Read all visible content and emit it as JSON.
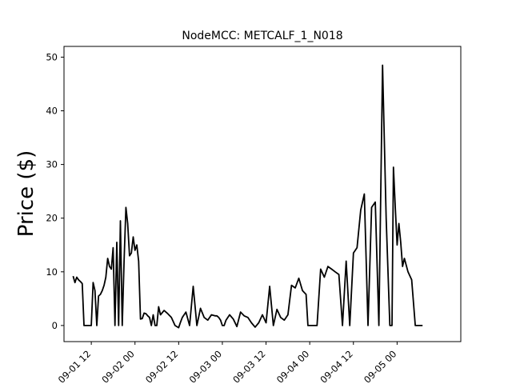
{
  "chart_data": {
    "type": "line",
    "title": "NodeMCC: METCALF_1_N018",
    "xlabel": "",
    "ylabel": "Price ($)",
    "xlim_hours": [
      -19.5,
      89.5
    ],
    "ylim": [
      -3,
      52
    ],
    "grid": false,
    "legend": "none",
    "line_color": "#000000",
    "y_ticks": [
      0,
      10,
      20,
      30,
      40,
      50
    ],
    "x_ticks": [
      {
        "hour": -12,
        "label": "09-01 12"
      },
      {
        "hour": 0,
        "label": "09-02 00"
      },
      {
        "hour": 12,
        "label": "09-02 12"
      },
      {
        "hour": 24,
        "label": "09-03 00"
      },
      {
        "hour": 36,
        "label": "09-03 12"
      },
      {
        "hour": 48,
        "label": "09-04 00"
      },
      {
        "hour": 60,
        "label": "09-04 12"
      },
      {
        "hour": 72,
        "label": "09-05 00"
      }
    ],
    "series": [
      {
        "x": [
          -17,
          -16.5,
          -16,
          -15.5,
          -15,
          -14.5,
          -14,
          -13.5,
          -13,
          -12.5,
          -12,
          -11.5,
          -11,
          -10.5,
          -10,
          -9.5,
          -9,
          -8.5,
          -8,
          -7.5,
          -7,
          -6.5,
          -6,
          -5.5,
          -5,
          -4.5,
          -4,
          -3.5,
          -3,
          -2.5,
          -2,
          -1.5,
          -1,
          -0.5,
          0,
          0.5,
          1,
          1.5,
          2,
          2.5,
          3,
          3.5,
          4,
          4.5,
          5,
          5.5,
          6,
          6.5,
          7,
          8,
          9,
          10,
          11,
          12,
          12.5,
          13,
          14,
          15,
          16,
          17,
          18,
          19,
          20,
          21,
          22,
          22.5,
          23,
          23.5,
          24,
          24.5,
          25,
          26,
          27,
          28,
          29,
          30,
          31,
          32,
          33,
          34,
          35,
          36,
          37,
          38,
          39,
          40,
          41,
          42,
          43,
          44,
          45,
          46,
          47,
          47.5,
          48,
          48.5,
          49,
          50,
          51,
          52,
          53,
          54,
          55,
          56,
          57,
          58,
          59,
          60,
          61,
          62,
          63,
          64,
          65,
          66,
          67,
          68,
          69,
          70,
          70.3,
          70.6,
          71,
          71.5,
          72,
          72.5,
          73,
          73.5,
          74,
          75,
          76,
          77,
          77.5,
          78,
          79
        ],
        "y": [
          9.2,
          8.0,
          9.0,
          8.5,
          8.2,
          7.8,
          0,
          0,
          0,
          0,
          0,
          8.0,
          6.5,
          0,
          5.5,
          5.8,
          6.5,
          7.5,
          9.0,
          12.5,
          11.0,
          10.5,
          14.5,
          0,
          15.5,
          0,
          19.5,
          0,
          12.0,
          22.0,
          19.0,
          13.0,
          13.5,
          16.5,
          14.0,
          15.0,
          12.0,
          1.2,
          1.3,
          2.3,
          2.2,
          1.8,
          1.5,
          0,
          2.0,
          0,
          0,
          3.5,
          2.0,
          2.8,
          2.2,
          1.5,
          0,
          -0.4,
          0.6,
          1.5,
          2.5,
          0,
          7.3,
          0,
          3.2,
          1.5,
          1.0,
          2.0,
          1.8,
          1.8,
          1.5,
          1.0,
          0,
          0,
          1.0,
          2.0,
          1.2,
          -0.2,
          2.5,
          1.8,
          1.5,
          0.5,
          -0.3,
          0.5,
          2.0,
          0.5,
          7.3,
          0,
          3.0,
          1.5,
          1.0,
          2.0,
          7.5,
          7.0,
          8.8,
          6.5,
          5.8,
          0,
          0,
          0,
          0,
          0,
          10.5,
          9.0,
          11.0,
          10.5,
          10.0,
          9.5,
          0,
          12.0,
          0,
          13.5,
          14.5,
          21.5,
          24.5,
          0,
          22.0,
          23.0,
          0,
          48.5,
          20.0,
          0,
          0,
          0,
          29.5,
          22.0,
          15.0,
          19.0,
          15.5,
          11.0,
          12.5,
          10.0,
          8.5,
          0,
          0,
          0,
          0
        ]
      }
    ]
  }
}
